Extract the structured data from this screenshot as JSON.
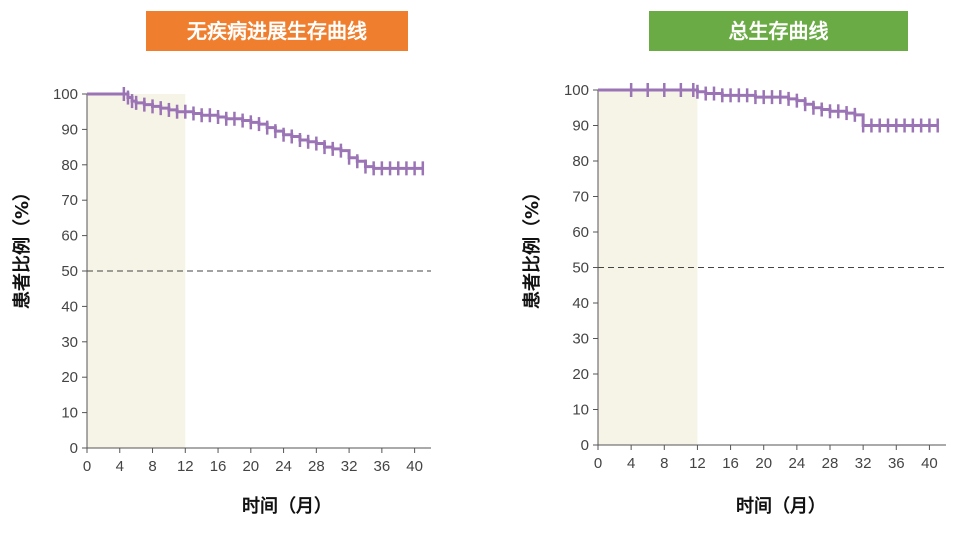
{
  "colors": {
    "left_title_bg": "#ef7f2f",
    "right_title_bg": "#6aab45",
    "curve": "#9b74b5",
    "window_shade": "#f6f4e6",
    "axis": "#555555",
    "ref_line": "#444444"
  },
  "chart_data": [
    {
      "type": "line",
      "title": "无疾病进展生存曲线",
      "xlabel": "时间（月）",
      "ylabel": "患者比例（%）",
      "xlim": [
        0,
        42
      ],
      "ylim": [
        0,
        100
      ],
      "x_ticks": [
        "0",
        "4",
        "8",
        "12",
        "16",
        "20",
        "24",
        "28",
        "32",
        "36",
        "40"
      ],
      "y_ticks": [
        "0",
        "10",
        "20",
        "30",
        "40",
        "50",
        "60",
        "70",
        "80",
        "90",
        "100"
      ],
      "shaded_window": [
        0,
        12
      ],
      "reference_line": 50,
      "series": [
        {
          "x": [
            0,
            4.5,
            5,
            5.5,
            6,
            7,
            8,
            9,
            10,
            11,
            12,
            13,
            14,
            15,
            16,
            17,
            18,
            19,
            20,
            21,
            22,
            23,
            24,
            25,
            26,
            27,
            28,
            29,
            30,
            31,
            32,
            33,
            34,
            35,
            36,
            37,
            38,
            39,
            40,
            41
          ],
          "y": [
            100,
            100,
            99,
            98,
            97.5,
            97,
            96.5,
            96,
            95.5,
            95,
            95,
            94.5,
            94,
            94,
            93.5,
            93,
            93,
            92.5,
            92,
            91.5,
            90.5,
            89.5,
            88.5,
            88,
            87,
            86.5,
            86,
            85,
            84.5,
            84,
            82,
            81,
            79.5,
            79,
            79,
            79,
            79,
            79,
            79,
            79
          ]
        }
      ]
    },
    {
      "type": "line",
      "title": "总生存曲线",
      "xlabel": "时间（月）",
      "ylabel": "患者比例（%）",
      "xlim": [
        0,
        42
      ],
      "ylim": [
        0,
        100
      ],
      "x_ticks": [
        "0",
        "4",
        "8",
        "12",
        "16",
        "20",
        "24",
        "28",
        "32",
        "36",
        "40"
      ],
      "y_ticks": [
        "0",
        "10",
        "20",
        "30",
        "40",
        "50",
        "60",
        "70",
        "80",
        "90",
        "100"
      ],
      "shaded_window": [
        0,
        12
      ],
      "reference_line": 50,
      "series": [
        {
          "x": [
            0,
            4,
            6,
            8,
            10,
            11.5,
            12,
            13,
            14,
            15,
            16,
            17,
            18,
            19,
            20,
            21,
            22,
            23,
            24,
            25,
            26,
            27,
            28,
            29,
            30,
            31,
            32,
            33,
            34,
            35,
            36,
            37,
            38,
            39,
            40,
            41
          ],
          "y": [
            100,
            100,
            100,
            100,
            100,
            100,
            99.5,
            99,
            99,
            98.5,
            98.5,
            98.5,
            98.5,
            98,
            98,
            98,
            98,
            97.5,
            97,
            96,
            95,
            94.5,
            94,
            94,
            93.5,
            93,
            90,
            90,
            90,
            90,
            90,
            90,
            90,
            90,
            90,
            90
          ]
        }
      ]
    }
  ]
}
